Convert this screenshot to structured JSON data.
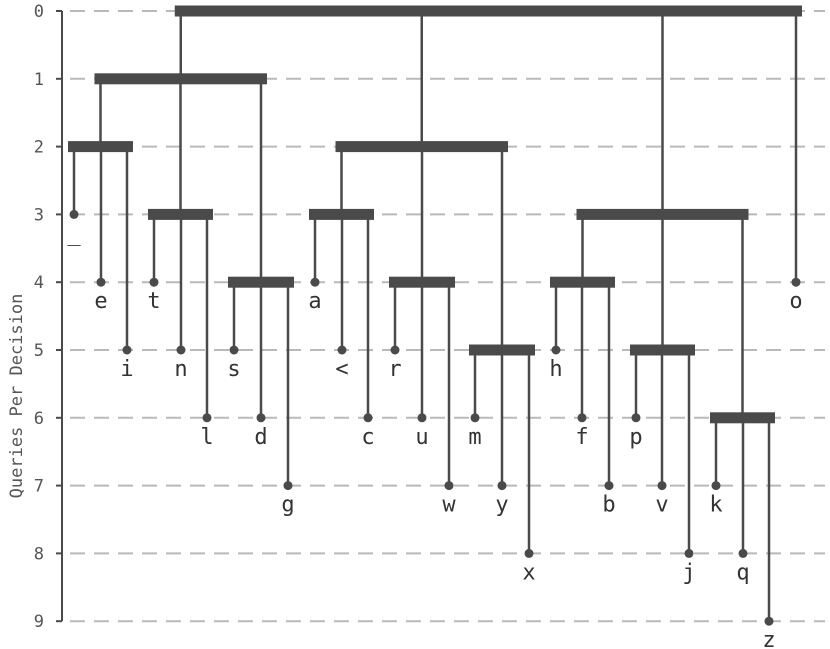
{
  "chart_data": {
    "type": "tree",
    "ylabel": "Queries Per Decision",
    "y_ticks": [
      "0",
      "1",
      "2",
      "3",
      "4",
      "5",
      "6",
      "7",
      "8",
      "9"
    ],
    "ylim": [
      0,
      9
    ],
    "grid": true,
    "nodes": [
      {
        "id": "n0",
        "depth": 0,
        "children": [
          "n1",
          "n2",
          "n3",
          "leaf-o"
        ]
      },
      {
        "id": "n1",
        "depth": 1,
        "children": [
          "n4",
          "n5",
          "n6"
        ]
      },
      {
        "id": "n4",
        "depth": 2,
        "children": [
          "leaf-_",
          "leaf-e",
          "leaf-i"
        ]
      },
      {
        "id": "n5",
        "depth": 3,
        "children": [
          "leaf-t",
          "leaf-n",
          "leaf-l"
        ]
      },
      {
        "id": "n6",
        "depth": 4,
        "children": [
          "leaf-s",
          "leaf-d",
          "leaf-g"
        ]
      },
      {
        "id": "n2",
        "depth": 2,
        "children": [
          "n7",
          "n8",
          "n9"
        ]
      },
      {
        "id": "n7",
        "depth": 3,
        "children": [
          "leaf-a",
          "leaf-<",
          "leaf-c"
        ]
      },
      {
        "id": "n8",
        "depth": 4,
        "children": [
          "leaf-r",
          "leaf-u",
          "leaf-w"
        ]
      },
      {
        "id": "n9",
        "depth": 5,
        "children": [
          "leaf-m",
          "leaf-y",
          "leaf-x"
        ]
      },
      {
        "id": "n3",
        "depth": 3,
        "children": [
          "n10",
          "n11",
          "n12"
        ]
      },
      {
        "id": "n10",
        "depth": 4,
        "children": [
          "leaf-h",
          "leaf-f",
          "leaf-b"
        ]
      },
      {
        "id": "n11",
        "depth": 5,
        "children": [
          "leaf-p",
          "leaf-v",
          "leaf-j"
        ]
      },
      {
        "id": "n12",
        "depth": 6,
        "children": [
          "leaf-k",
          "leaf-q",
          "leaf-z"
        ]
      }
    ],
    "leaves": [
      {
        "id": "leaf-_",
        "label": "_",
        "depth": 3
      },
      {
        "id": "leaf-e",
        "label": "e",
        "depth": 4
      },
      {
        "id": "leaf-i",
        "label": "i",
        "depth": 5
      },
      {
        "id": "leaf-t",
        "label": "t",
        "depth": 4
      },
      {
        "id": "leaf-n",
        "label": "n",
        "depth": 5
      },
      {
        "id": "leaf-l",
        "label": "l",
        "depth": 6
      },
      {
        "id": "leaf-s",
        "label": "s",
        "depth": 5
      },
      {
        "id": "leaf-d",
        "label": "d",
        "depth": 6
      },
      {
        "id": "leaf-g",
        "label": "g",
        "depth": 7
      },
      {
        "id": "leaf-a",
        "label": "a",
        "depth": 4
      },
      {
        "id": "leaf-<",
        "label": "<",
        "depth": 5
      },
      {
        "id": "leaf-c",
        "label": "c",
        "depth": 6
      },
      {
        "id": "leaf-r",
        "label": "r",
        "depth": 5
      },
      {
        "id": "leaf-u",
        "label": "u",
        "depth": 6
      },
      {
        "id": "leaf-w",
        "label": "w",
        "depth": 7
      },
      {
        "id": "leaf-m",
        "label": "m",
        "depth": 6
      },
      {
        "id": "leaf-y",
        "label": "y",
        "depth": 7
      },
      {
        "id": "leaf-x",
        "label": "x",
        "depth": 8
      },
      {
        "id": "leaf-h",
        "label": "h",
        "depth": 5
      },
      {
        "id": "leaf-f",
        "label": "f",
        "depth": 6
      },
      {
        "id": "leaf-b",
        "label": "b",
        "depth": 7
      },
      {
        "id": "leaf-p",
        "label": "p",
        "depth": 6
      },
      {
        "id": "leaf-v",
        "label": "v",
        "depth": 7
      },
      {
        "id": "leaf-j",
        "label": "j",
        "depth": 8
      },
      {
        "id": "leaf-k",
        "label": "k",
        "depth": 7
      },
      {
        "id": "leaf-q",
        "label": "q",
        "depth": 8
      },
      {
        "id": "leaf-z",
        "label": "z",
        "depth": 9
      },
      {
        "id": "leaf-o",
        "label": "o",
        "depth": 4
      }
    ]
  }
}
